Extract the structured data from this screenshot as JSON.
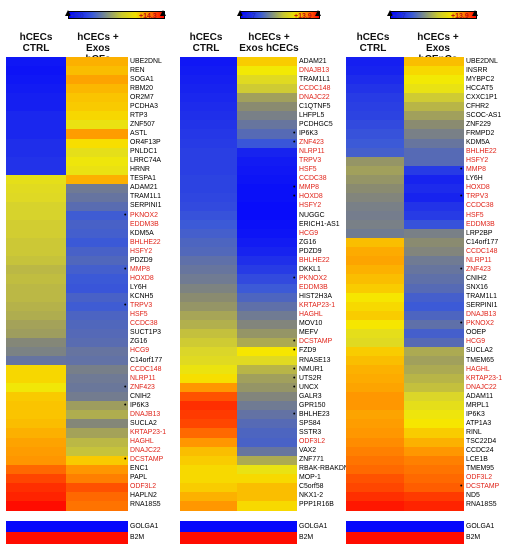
{
  "chart_data": [
    {
      "type": "heatmap",
      "legend": {
        "min": "+5.0",
        "max": "+14.3"
      },
      "columns": [
        "hCECs\nCTRL",
        "hCECs + Exos\nhCFs"
      ],
      "genes": [
        "UBE2DNL",
        "REN",
        "SOGA1",
        "RBM20",
        "OR2M7",
        "PCDHA3",
        "RTP3",
        "ZNF507",
        "ASTL",
        "OR4F13P",
        "PNLDC1",
        "LRRC74A",
        "HRNR",
        "TESPA1",
        "ADAM21",
        "TRAM1L1",
        "SERPINI1",
        "PKNOX2",
        "EDDM3B",
        "KDM5A",
        "BHLHE22",
        "HSFY2",
        "PDZD9",
        "MMP8",
        "HOXD8",
        "LY6H",
        "KCNH5",
        "TRPV3",
        "HSF5",
        "CCDC38",
        "SUCT1P3",
        "ZG16",
        "HCG9",
        "C14orf177",
        "CCDC148",
        "NLRP11",
        "ZNF423",
        "CNIH2",
        "IP6K3",
        "DNAJB13",
        "SUCLA2",
        "KRTAP23-1",
        "HAGHL",
        "DNAJC22",
        "DCSTAMP",
        "ENC1",
        "PAPL",
        "ODF3L2",
        "HAPLN2",
        "RNA18S5"
      ],
      "red_genes": [
        "PKNOX2",
        "EDDM3B",
        "BHLHE22",
        "HSFY2",
        "MMP8",
        "HOXD8",
        "TRPV3",
        "HSF5",
        "CCDC38",
        "HCG9",
        "CCDC148",
        "NLRP11",
        "ZNF423",
        "DNAJB13",
        "KRTAP23-1",
        "HAGHL",
        "DNAJC22",
        "DCSTAMP",
        "ODF3L2"
      ],
      "marked_genes": [
        "PKNOX2",
        "MMP8",
        "TRPV3",
        "ZNF423",
        "IP6K3",
        "DCSTAMP"
      ],
      "values": [
        [
          5.6,
          12.6
        ],
        [
          5.5,
          12.4
        ],
        [
          5.6,
          12.8
        ],
        [
          5.7,
          12.5
        ],
        [
          5.8,
          12.3
        ],
        [
          5.8,
          12.2
        ],
        [
          6.0,
          12.0
        ],
        [
          6.0,
          11.2
        ],
        [
          6.0,
          12.9
        ],
        [
          6.2,
          11.9
        ],
        [
          6.2,
          11.0
        ],
        [
          6.3,
          11.4
        ],
        [
          6.3,
          11.2
        ],
        [
          11.0,
          12.6
        ],
        [
          10.8,
          8.5
        ],
        [
          10.7,
          8.3
        ],
        [
          10.5,
          8.0
        ],
        [
          10.5,
          7.4
        ],
        [
          10.4,
          7.6
        ],
        [
          10.4,
          7.5
        ],
        [
          10.3,
          7.3
        ],
        [
          10.3,
          7.6
        ],
        [
          10.2,
          7.8
        ],
        [
          10.0,
          7.5
        ],
        [
          10.1,
          7.3
        ],
        [
          10.0,
          7.2
        ],
        [
          10.0,
          7.6
        ],
        [
          9.9,
          7.4
        ],
        [
          9.8,
          7.7
        ],
        [
          9.6,
          7.8
        ],
        [
          9.5,
          7.9
        ],
        [
          9.0,
          8.0
        ],
        [
          8.8,
          8.3
        ],
        [
          8.3,
          8.2
        ],
        [
          12.0,
          8.7
        ],
        [
          12.0,
          8.5
        ],
        [
          11.5,
          8.4
        ],
        [
          12.2,
          8.6
        ],
        [
          12.3,
          9.5
        ],
        [
          12.3,
          9.8
        ],
        [
          12.4,
          9.0
        ],
        [
          12.6,
          9.6
        ],
        [
          12.8,
          10.0
        ],
        [
          12.9,
          10.2
        ],
        [
          13.0,
          12.2
        ],
        [
          13.4,
          13.0
        ],
        [
          13.7,
          13.2
        ],
        [
          13.9,
          13.6
        ],
        [
          14.0,
          13.4
        ],
        [
          14.2,
          13.3
        ]
      ],
      "controls": [
        {
          "gene": "GOLGA1",
          "values": [
            5.2,
            5.2
          ]
        },
        {
          "gene": "B2M",
          "values": [
            14.2,
            14.2
          ]
        }
      ]
    },
    {
      "type": "heatmap",
      "legend": {
        "min": "+4.7",
        "max": "+13.9"
      },
      "columns": [
        "hCECs\nCTRL",
        "hCECs +\nExos hCECs"
      ],
      "genes": [
        "ADAM21",
        "DNAJB13",
        "TRAM1L1",
        "CCDC148",
        "DNAJC22",
        "C1QTNF5",
        "LHFPL5",
        "PCDHGC5",
        "IP6K3",
        "ZNF423",
        "NLRP11",
        "TRPV3",
        "HSF5",
        "CCDC38",
        "MMP8",
        "HOXD8",
        "HSFY2",
        "NUGGC",
        "ERICH1-AS1",
        "HCG9",
        "ZG16",
        "PDZD9",
        "BHLHE22",
        "DKKL1",
        "PKNOX2",
        "EDDM3B",
        "HIST2H3A",
        "KRTAP23-1",
        "HAGHL",
        "MOV10",
        "MEFV",
        "DCSTAMP",
        "FZD9",
        "RNASE13",
        "NMUR1",
        "UTS2R",
        "UNCX",
        "GALR3",
        "GPR150",
        "BHLHE23",
        "SPS84",
        "SSTR3",
        "ODF3L2",
        "VAX2",
        "ZNF771",
        "RBAK-RBAKDN",
        "MOP-1",
        "C5orf58",
        "NKX1-2",
        "PPP1R16B"
      ],
      "red_genes": [
        "DNAJB13",
        "CCDC148",
        "DNAJC22",
        "ZNF423",
        "NLRP11",
        "TRPV3",
        "HSF5",
        "CCDC38",
        "MMP8",
        "HOXD8",
        "HSFY2",
        "HCG9",
        "BHLHE22",
        "PKNOX2",
        "EDDM3B",
        "KRTAP23-1",
        "HAGHL",
        "DCSTAMP",
        "ODF3L2"
      ],
      "marked_genes": [
        "IP6K3",
        "ZNF423",
        "MMP8",
        "HOXD8",
        "PKNOX2",
        "DCSTAMP",
        "FZD9",
        "NMUR1",
        "UTS2R",
        "UNCX",
        "BHLHE23"
      ],
      "values": [
        [
          5.3,
          11.8
        ],
        [
          5.4,
          11.2
        ],
        [
          5.5,
          10.4
        ],
        [
          5.6,
          10.0
        ],
        [
          5.7,
          9.2
        ],
        [
          5.8,
          8.8
        ],
        [
          5.9,
          8.4
        ],
        [
          6.0,
          8.0
        ],
        [
          6.1,
          7.6
        ],
        [
          6.2,
          6.9
        ],
        [
          6.3,
          5.6
        ],
        [
          6.3,
          5.4
        ],
        [
          6.3,
          5.3
        ],
        [
          6.4,
          5.2
        ],
        [
          6.4,
          5.1
        ],
        [
          6.5,
          5.1
        ],
        [
          6.6,
          5.0
        ],
        [
          6.8,
          5.0
        ],
        [
          7.0,
          5.1
        ],
        [
          7.2,
          5.2
        ],
        [
          7.4,
          5.4
        ],
        [
          7.5,
          5.6
        ],
        [
          7.8,
          5.9
        ],
        [
          8.0,
          6.2
        ],
        [
          8.2,
          6.6
        ],
        [
          8.5,
          7.0
        ],
        [
          8.8,
          7.4
        ],
        [
          9.0,
          7.8
        ],
        [
          9.3,
          8.2
        ],
        [
          9.5,
          8.6
        ],
        [
          9.8,
          9.0
        ],
        [
          10.0,
          9.4
        ],
        [
          10.2,
          11.4
        ],
        [
          10.4,
          10.4
        ],
        [
          10.9,
          9.6
        ],
        [
          11.5,
          9.2
        ],
        [
          12.6,
          9.0
        ],
        [
          13.2,
          8.6
        ],
        [
          13.5,
          8.2
        ],
        [
          13.4,
          7.9
        ],
        [
          13.3,
          7.6
        ],
        [
          13.0,
          7.4
        ],
        [
          12.6,
          7.3
        ],
        [
          12.0,
          8.0
        ],
        [
          11.8,
          9.4
        ],
        [
          11.6,
          10.8
        ],
        [
          11.6,
          11.6
        ],
        [
          11.8,
          12.0
        ],
        [
          12.2,
          12.0
        ],
        [
          12.6,
          11.6
        ]
      ],
      "controls": [
        {
          "gene": "GOLGA1",
          "values": [
            4.9,
            4.9
          ]
        },
        {
          "gene": "B2M",
          "values": [
            13.8,
            13.8
          ]
        }
      ]
    },
    {
      "type": "heatmap",
      "legend": {
        "min": "+4.7",
        "max": "+13.9"
      },
      "columns": [
        "hCECs\nCTRL",
        "hCECs + Exos\nhCEnCs"
      ],
      "genes": [
        "UBE2DNL",
        "INSRR",
        "MYBPC2",
        "HCCAT5",
        "CXXC1P1",
        "CFHR2",
        "SCOC-AS1",
        "ZNF229",
        "FRMPD2",
        "KDM5A",
        "BHLHE22",
        "HSFY2",
        "MMP8",
        "LY6H",
        "HOXD8",
        "TRPV3",
        "CCDC38",
        "HSF5",
        "EDDM3B",
        "LRP2BP",
        "C14orf177",
        "CCDC148",
        "NLRP11",
        "ZNF423",
        "CNIH2",
        "SNX16",
        "TRAM1L1",
        "SERPINI1",
        "DNAJB13",
        "PKNOX2",
        "OOEP",
        "HCG9",
        "SUCLA2",
        "TMEM65",
        "HAGHL",
        "KRTAP23-1",
        "DNAJC22",
        "ADAM11",
        "MRPL1",
        "IP6K3",
        "ATP1A3",
        "RINL",
        "TSC22D4",
        "CCDC24",
        "LCE1B",
        "TMEM95",
        "ODF3L2",
        "DCSTAMP",
        "ND5",
        "RNA18S5"
      ],
      "red_genes": [
        "BHLHE22",
        "HSFY2",
        "MMP8",
        "HOXD8",
        "TRPV3",
        "CCDC38",
        "HSF5",
        "EDDM3B",
        "CCDC148",
        "NLRP11",
        "ZNF423",
        "DNAJB13",
        "PKNOX2",
        "HCG9",
        "HAGHL",
        "KRTAP23-1",
        "DNAJC22",
        "ODF3L2",
        "DCSTAMP"
      ],
      "marked_genes": [
        "MMP8",
        "TRPV3",
        "ZNF423",
        "PKNOX2",
        "DCSTAMP"
      ],
      "values": [
        [
          5.5,
          12.0
        ],
        [
          5.6,
          11.6
        ],
        [
          5.8,
          11.2
        ],
        [
          6.0,
          10.8
        ],
        [
          6.2,
          10.0
        ],
        [
          6.3,
          9.6
        ],
        [
          6.4,
          9.2
        ],
        [
          6.6,
          8.8
        ],
        [
          6.8,
          8.4
        ],
        [
          7.0,
          8.0
        ],
        [
          7.2,
          7.6
        ],
        [
          9.0,
          7.6
        ],
        [
          9.2,
          6.2
        ],
        [
          9.0,
          5.6
        ],
        [
          8.8,
          5.8
        ],
        [
          8.6,
          5.6
        ],
        [
          8.4,
          6.0
        ],
        [
          8.3,
          6.2
        ],
        [
          8.4,
          6.8
        ],
        [
          8.2,
          8.4
        ],
        [
          12.0,
          8.8
        ],
        [
          12.3,
          8.6
        ],
        [
          12.4,
          8.2
        ],
        [
          12.2,
          8.0
        ],
        [
          12.0,
          7.8
        ],
        [
          11.8,
          7.6
        ],
        [
          11.4,
          7.2
        ],
        [
          11.6,
          7.0
        ],
        [
          11.8,
          7.4
        ],
        [
          11.4,
          7.8
        ],
        [
          10.6,
          7.2
        ],
        [
          10.4,
          7.6
        ],
        [
          11.8,
          9.4
        ],
        [
          12.0,
          9.2
        ],
        [
          12.2,
          9.4
        ],
        [
          12.3,
          9.6
        ],
        [
          12.4,
          9.8
        ],
        [
          12.6,
          10.2
        ],
        [
          12.6,
          10.6
        ],
        [
          12.4,
          11.0
        ],
        [
          12.5,
          11.4
        ],
        [
          12.6,
          11.8
        ],
        [
          12.7,
          12.2
        ],
        [
          12.8,
          12.6
        ],
        [
          12.9,
          12.8
        ],
        [
          13.0,
          12.9
        ],
        [
          13.2,
          13.0
        ],
        [
          13.3,
          13.1
        ],
        [
          13.5,
          13.4
        ],
        [
          13.7,
          13.6
        ]
      ],
      "controls": [
        {
          "gene": "GOLGA1",
          "values": [
            4.9,
            4.9
          ]
        },
        {
          "gene": "B2M",
          "values": [
            13.8,
            13.8
          ]
        }
      ]
    }
  ]
}
